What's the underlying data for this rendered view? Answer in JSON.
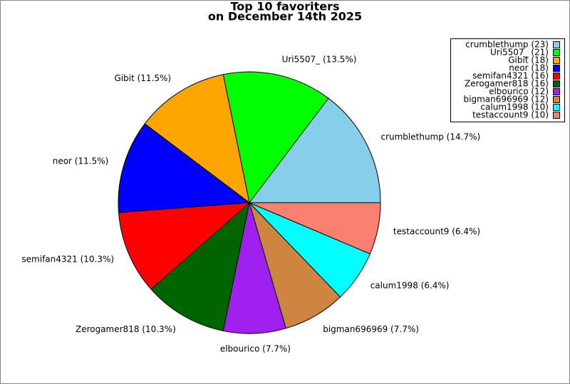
{
  "chart_data": {
    "type": "pie",
    "title": "Top 10 favoriters",
    "subtitle": "on December 14th 2025",
    "categories": [
      "crumblethump",
      "Uri5507_",
      "Gibit",
      "neor",
      "semifan4321",
      "Zerogamer818",
      "elbourico",
      "bigman696969",
      "calum1998",
      "testaccount9"
    ],
    "values": [
      14.7,
      13.5,
      11.5,
      11.5,
      10.3,
      10.3,
      7.7,
      7.7,
      6.4,
      6.4
    ],
    "value_labels": [
      "crumblethump (14.7%)",
      "Uri5507_ (13.5%)",
      "Gibit (11.5%)",
      "neor (11.5%)",
      "semifan4321 (10.3%)",
      "Zerogamer818 (10.3%)",
      "elbourico (7.7%)",
      "bigman696969 (7.7%)",
      "calum1998 (6.4%)",
      "testaccount9 (6.4%)"
    ],
    "legend_labels": [
      "crumblethump (23)",
      "Uri5507_ (21)",
      "Gibit (18)",
      "neor (18)",
      "semifan4321 (16)",
      "Zerogamer818 (16)",
      "elbourico (12)",
      "bigman696969 (12)",
      "calum1998 (10)",
      "testaccount9 (10)"
    ],
    "colors": [
      "#87ceeb",
      "#00ff00",
      "#ffa500",
      "#0000ff",
      "#ff0000",
      "#006400",
      "#a020f0",
      "#cd853f",
      "#00ffff",
      "#fa8072"
    ],
    "legend": "upper right"
  }
}
